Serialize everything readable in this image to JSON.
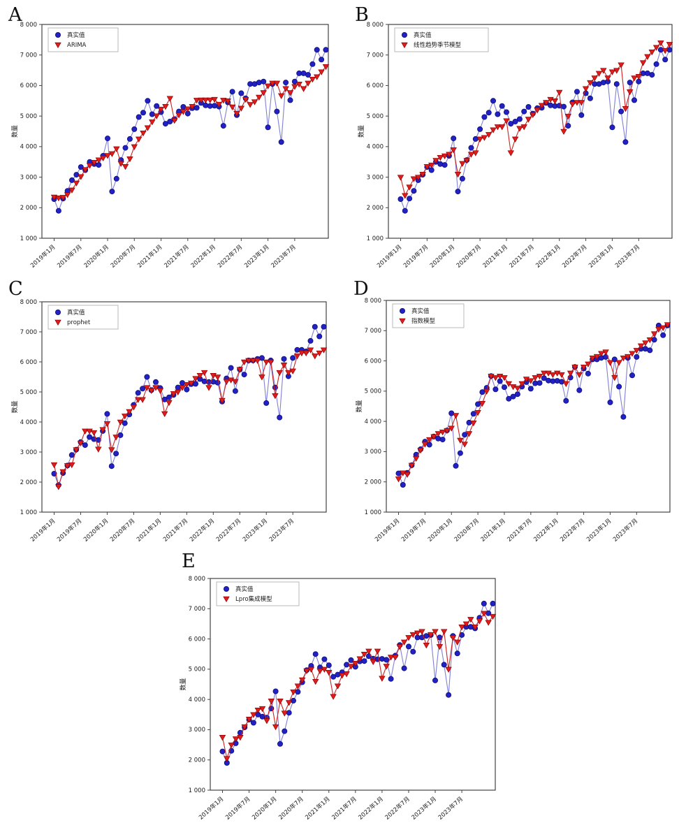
{
  "figure": {
    "ylabel": "数量",
    "legend_actual_label": "真实值",
    "ytick_labels": [
      "1 000",
      "2 000",
      "3 000",
      "4 000",
      "5 000",
      "6 000",
      "7 000",
      "8 000"
    ],
    "xtick_labels": [
      "2019年1月",
      "2019年7月",
      "2020年1月",
      "2020年7月",
      "2021年1月",
      "2021年7月",
      "2022年1月",
      "2022年7月",
      "2023年1月",
      "2023年7月"
    ],
    "colors": {
      "actual_marker": "#2121c4",
      "actual_marker_edge": "#0d0d7a",
      "actual_line": "#8080d8",
      "predicted_marker": "#e01d1d",
      "predicted_marker_edge": "#900000",
      "predicted_line": "#cc2222",
      "axis": "#444444",
      "text": "#1a1a1a"
    }
  },
  "chart_data": {
    "type": "line",
    "ylabel": "数量",
    "ylim": [
      1000,
      8000
    ],
    "yticks": [
      1000,
      2000,
      3000,
      4000,
      5000,
      6000,
      7000,
      8000
    ],
    "xtick_labels": [
      "2019年1月",
      "2019年7月",
      "2020年1月",
      "2020年7月",
      "2021年1月",
      "2021年7月",
      "2022年1月",
      "2022年7月",
      "2023年1月",
      "2023年7月"
    ],
    "xtick_point_indices": [
      0,
      6,
      12,
      18,
      24,
      30,
      36,
      42,
      48,
      54
    ],
    "n_points": 62,
    "actual_series_name": "真实值",
    "actual_values": [
      2280,
      1900,
      2300,
      2550,
      2900,
      3080,
      3330,
      3230,
      3500,
      3430,
      3400,
      3700,
      4270,
      2530,
      2950,
      3560,
      3960,
      4250,
      4570,
      4970,
      5110,
      5500,
      5060,
      5330,
      5130,
      4750,
      4820,
      4900,
      5150,
      5300,
      5080,
      5260,
      5270,
      5430,
      5350,
      5330,
      5340,
      5310,
      4680,
      5450,
      5800,
      5030,
      5750,
      5580,
      6050,
      6050,
      6100,
      6130,
      4630,
      6050,
      5150,
      4150,
      6100,
      5520,
      6130,
      6400,
      6400,
      6350,
      6700,
      7170,
      6850,
      7170
    ],
    "panels": [
      {
        "label": "A",
        "model_name": "ARIMA",
        "predicted_values": [
          2350,
          2320,
          2340,
          2430,
          2580,
          2810,
          3020,
          3250,
          3390,
          3490,
          3570,
          3630,
          3710,
          3770,
          3930,
          3450,
          3350,
          3600,
          4000,
          4250,
          4450,
          4620,
          4810,
          5010,
          5230,
          5320,
          5580,
          4860,
          5040,
          5150,
          5240,
          5320,
          5520,
          5530,
          5530,
          5530,
          5550,
          5390,
          5520,
          5500,
          5300,
          5090,
          5260,
          5550,
          5380,
          5470,
          5620,
          5770,
          5990,
          6080,
          6080,
          5670,
          5900,
          5770,
          5970,
          6050,
          5900,
          6080,
          6210,
          6290,
          6450,
          6620
        ]
      },
      {
        "label": "B",
        "model_name": "线性趋势季节模型",
        "predicted_values": [
          3000,
          2400,
          2680,
          2950,
          3000,
          3100,
          3350,
          3400,
          3550,
          3650,
          3700,
          3750,
          3900,
          3100,
          3450,
          3550,
          3750,
          3800,
          4250,
          4300,
          4400,
          4550,
          4650,
          4650,
          4850,
          3800,
          4250,
          4600,
          4650,
          4900,
          5050,
          5200,
          5350,
          5450,
          5550,
          5500,
          5780,
          4500,
          5000,
          5400,
          5450,
          5450,
          5900,
          6100,
          6250,
          6400,
          6500,
          6250,
          6450,
          6500,
          6680,
          5250,
          5800,
          6250,
          6300,
          6750,
          6950,
          7100,
          7250,
          7400,
          7150,
          7350
        ]
      },
      {
        "label": "C",
        "model_name": "prophet",
        "predicted_values": [
          2580,
          1850,
          2350,
          2550,
          2580,
          3080,
          3300,
          3700,
          3700,
          3650,
          3100,
          3750,
          3950,
          3080,
          3500,
          4000,
          4200,
          4350,
          4500,
          4750,
          4750,
          5150,
          5050,
          5150,
          5050,
          4280,
          4650,
          4950,
          5000,
          5150,
          5250,
          5300,
          5450,
          5550,
          5650,
          5150,
          5550,
          5500,
          4720,
          5350,
          5400,
          5350,
          5750,
          6000,
          6050,
          6050,
          6050,
          5500,
          6000,
          6000,
          4880,
          5650,
          5900,
          5650,
          5700,
          6200,
          6300,
          6300,
          6400,
          6200,
          6300,
          6400
        ]
      },
      {
        "label": "D",
        "model_name": "指数模型",
        "predicted_values": [
          2100,
          2300,
          2250,
          2550,
          2780,
          3050,
          3250,
          3400,
          3500,
          3600,
          3650,
          3700,
          3780,
          4200,
          3380,
          3250,
          3600,
          3950,
          4300,
          4600,
          5000,
          5500,
          5450,
          5500,
          5450,
          5250,
          5150,
          5100,
          5250,
          5400,
          5350,
          5450,
          5500,
          5600,
          5600,
          5550,
          5600,
          5550,
          5250,
          5600,
          5800,
          5550,
          5800,
          5900,
          6100,
          6150,
          6250,
          6300,
          5950,
          5450,
          5950,
          6100,
          6150,
          6250,
          6350,
          6500,
          6600,
          6700,
          6900,
          7050,
          7100,
          7200
        ]
      },
      {
        "label": "E",
        "model_name": "Lpro集成模型",
        "predicted_values": [
          2750,
          2050,
          2500,
          2700,
          2750,
          3100,
          3350,
          3500,
          3650,
          3700,
          3300,
          3950,
          3100,
          3950,
          3550,
          3900,
          4250,
          4450,
          4650,
          4950,
          5000,
          4600,
          4950,
          5000,
          4900,
          4100,
          4450,
          4800,
          4850,
          5100,
          5200,
          5350,
          5500,
          5600,
          5250,
          5600,
          4700,
          5100,
          5400,
          5400,
          5750,
          5900,
          6050,
          6150,
          6200,
          6250,
          5800,
          6150,
          6250,
          5750,
          6250,
          5000,
          6050,
          5900,
          6400,
          6500,
          6650,
          6400,
          6600,
          6850,
          6550,
          6750
        ]
      }
    ]
  }
}
